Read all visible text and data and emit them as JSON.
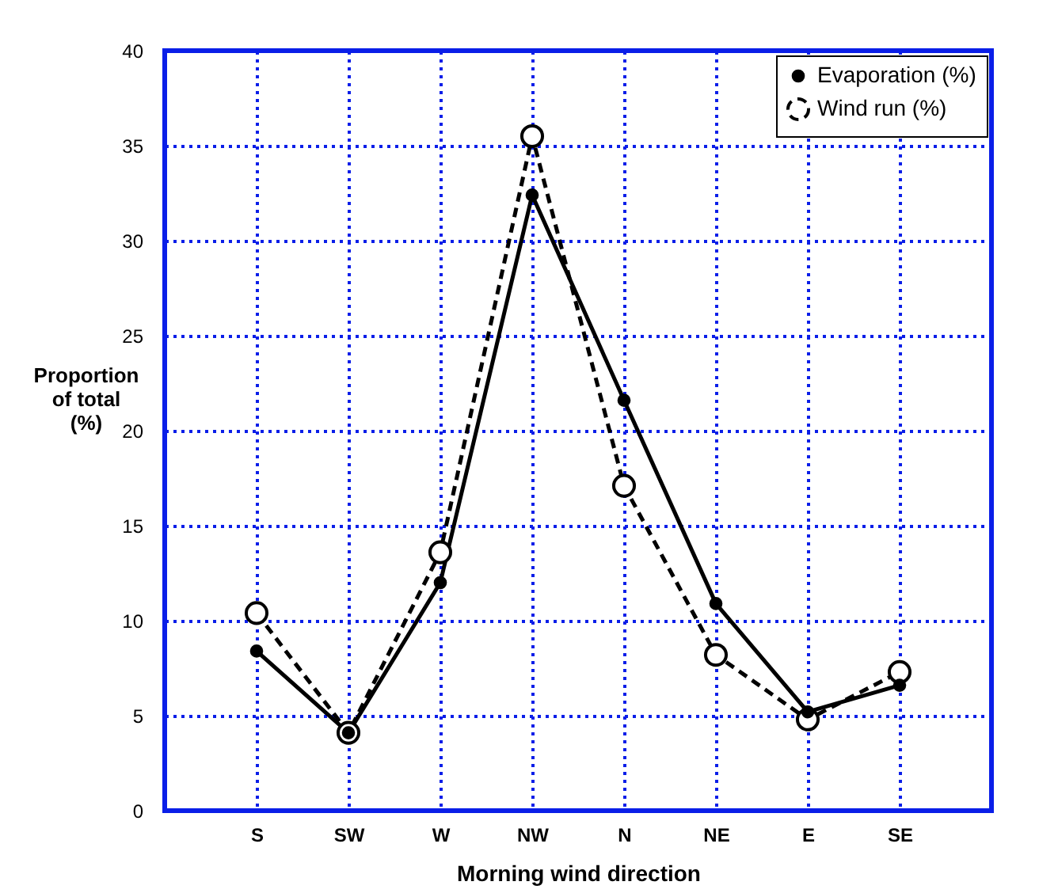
{
  "chart_data": {
    "type": "line",
    "xlabel": "Morning wind direction",
    "ylabel": "Proportion\nof total\n(%)",
    "categories": [
      "S",
      "SW",
      "W",
      "NW",
      "N",
      "NE",
      "E",
      "SE"
    ],
    "series": [
      {
        "name": "Evaporation (%)",
        "color": "#000000",
        "values": [
          8.4,
          4.1,
          12.0,
          32.4,
          21.6,
          10.9,
          5.2,
          6.6
        ],
        "line_style": "solid",
        "marker": "circle"
      },
      {
        "name": "Wind run (%)",
        "color": "#000000",
        "values": [
          10.4,
          4.1,
          13.6,
          35.5,
          17.1,
          8.2,
          4.8,
          7.3
        ],
        "line_style": "dashed",
        "marker": "circle"
      }
    ],
    "ylim": [
      0,
      40
    ],
    "yticks": [
      0,
      5,
      10,
      15,
      20,
      25,
      30,
      35,
      40
    ],
    "grid": true,
    "legend": "top right"
  }
}
